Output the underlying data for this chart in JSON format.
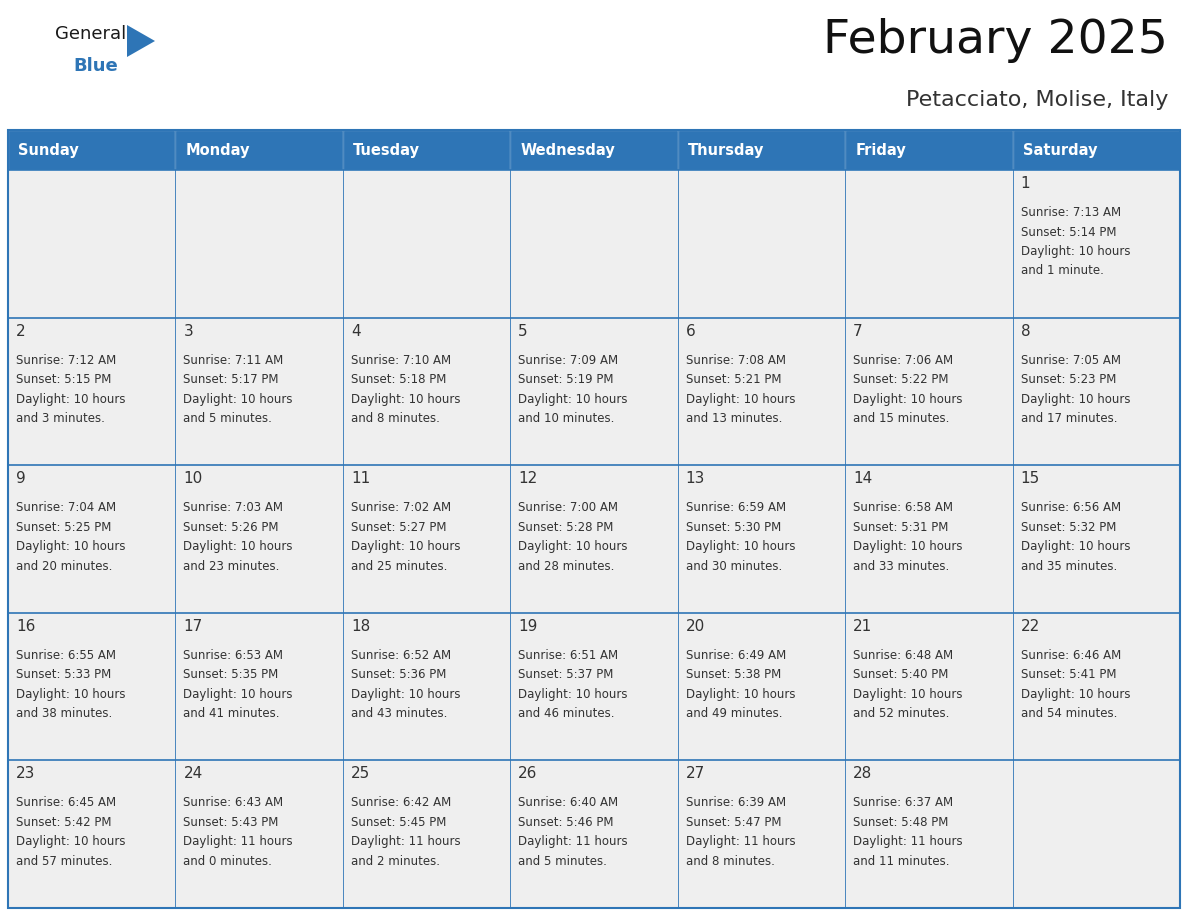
{
  "title": "February 2025",
  "subtitle": "Petacciato, Molise, Italy",
  "header_bg": "#2E75B6",
  "header_text_color": "#FFFFFF",
  "days_of_week": [
    "Sunday",
    "Monday",
    "Tuesday",
    "Wednesday",
    "Thursday",
    "Friday",
    "Saturday"
  ],
  "cell_bg": "#EFEFEF",
  "cell_border_color": "#2E75B6",
  "day_number_color": "#333333",
  "info_text_color": "#333333",
  "logo_general_color": "#222222",
  "logo_blue_color": "#2E75B6",
  "logo_triangle_color": "#2E75B6",
  "calendar_data": [
    [
      null,
      null,
      null,
      null,
      null,
      null,
      {
        "day": 1,
        "sunrise": "7:13 AM",
        "sunset": "5:14 PM",
        "daylight": "10 hours",
        "daylight2": "and 1 minute."
      }
    ],
    [
      {
        "day": 2,
        "sunrise": "7:12 AM",
        "sunset": "5:15 PM",
        "daylight": "10 hours",
        "daylight2": "and 3 minutes."
      },
      {
        "day": 3,
        "sunrise": "7:11 AM",
        "sunset": "5:17 PM",
        "daylight": "10 hours",
        "daylight2": "and 5 minutes."
      },
      {
        "day": 4,
        "sunrise": "7:10 AM",
        "sunset": "5:18 PM",
        "daylight": "10 hours",
        "daylight2": "and 8 minutes."
      },
      {
        "day": 5,
        "sunrise": "7:09 AM",
        "sunset": "5:19 PM",
        "daylight": "10 hours",
        "daylight2": "and 10 minutes."
      },
      {
        "day": 6,
        "sunrise": "7:08 AM",
        "sunset": "5:21 PM",
        "daylight": "10 hours",
        "daylight2": "and 13 minutes."
      },
      {
        "day": 7,
        "sunrise": "7:06 AM",
        "sunset": "5:22 PM",
        "daylight": "10 hours",
        "daylight2": "and 15 minutes."
      },
      {
        "day": 8,
        "sunrise": "7:05 AM",
        "sunset": "5:23 PM",
        "daylight": "10 hours",
        "daylight2": "and 17 minutes."
      }
    ],
    [
      {
        "day": 9,
        "sunrise": "7:04 AM",
        "sunset": "5:25 PM",
        "daylight": "10 hours",
        "daylight2": "and 20 minutes."
      },
      {
        "day": 10,
        "sunrise": "7:03 AM",
        "sunset": "5:26 PM",
        "daylight": "10 hours",
        "daylight2": "and 23 minutes."
      },
      {
        "day": 11,
        "sunrise": "7:02 AM",
        "sunset": "5:27 PM",
        "daylight": "10 hours",
        "daylight2": "and 25 minutes."
      },
      {
        "day": 12,
        "sunrise": "7:00 AM",
        "sunset": "5:28 PM",
        "daylight": "10 hours",
        "daylight2": "and 28 minutes."
      },
      {
        "day": 13,
        "sunrise": "6:59 AM",
        "sunset": "5:30 PM",
        "daylight": "10 hours",
        "daylight2": "and 30 minutes."
      },
      {
        "day": 14,
        "sunrise": "6:58 AM",
        "sunset": "5:31 PM",
        "daylight": "10 hours",
        "daylight2": "and 33 minutes."
      },
      {
        "day": 15,
        "sunrise": "6:56 AM",
        "sunset": "5:32 PM",
        "daylight": "10 hours",
        "daylight2": "and 35 minutes."
      }
    ],
    [
      {
        "day": 16,
        "sunrise": "6:55 AM",
        "sunset": "5:33 PM",
        "daylight": "10 hours",
        "daylight2": "and 38 minutes."
      },
      {
        "day": 17,
        "sunrise": "6:53 AM",
        "sunset": "5:35 PM",
        "daylight": "10 hours",
        "daylight2": "and 41 minutes."
      },
      {
        "day": 18,
        "sunrise": "6:52 AM",
        "sunset": "5:36 PM",
        "daylight": "10 hours",
        "daylight2": "and 43 minutes."
      },
      {
        "day": 19,
        "sunrise": "6:51 AM",
        "sunset": "5:37 PM",
        "daylight": "10 hours",
        "daylight2": "and 46 minutes."
      },
      {
        "day": 20,
        "sunrise": "6:49 AM",
        "sunset": "5:38 PM",
        "daylight": "10 hours",
        "daylight2": "and 49 minutes."
      },
      {
        "day": 21,
        "sunrise": "6:48 AM",
        "sunset": "5:40 PM",
        "daylight": "10 hours",
        "daylight2": "and 52 minutes."
      },
      {
        "day": 22,
        "sunrise": "6:46 AM",
        "sunset": "5:41 PM",
        "daylight": "10 hours",
        "daylight2": "and 54 minutes."
      }
    ],
    [
      {
        "day": 23,
        "sunrise": "6:45 AM",
        "sunset": "5:42 PM",
        "daylight": "10 hours",
        "daylight2": "and 57 minutes."
      },
      {
        "day": 24,
        "sunrise": "6:43 AM",
        "sunset": "5:43 PM",
        "daylight": "11 hours",
        "daylight2": "and 0 minutes."
      },
      {
        "day": 25,
        "sunrise": "6:42 AM",
        "sunset": "5:45 PM",
        "daylight": "11 hours",
        "daylight2": "and 2 minutes."
      },
      {
        "day": 26,
        "sunrise": "6:40 AM",
        "sunset": "5:46 PM",
        "daylight": "11 hours",
        "daylight2": "and 5 minutes."
      },
      {
        "day": 27,
        "sunrise": "6:39 AM",
        "sunset": "5:47 PM",
        "daylight": "11 hours",
        "daylight2": "and 8 minutes."
      },
      {
        "day": 28,
        "sunrise": "6:37 AM",
        "sunset": "5:48 PM",
        "daylight": "11 hours",
        "daylight2": "and 11 minutes."
      },
      null
    ]
  ]
}
